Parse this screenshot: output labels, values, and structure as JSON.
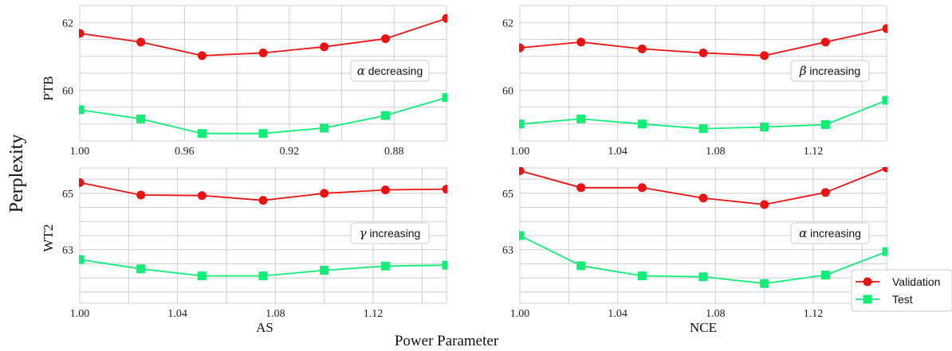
{
  "labels": {
    "ylabel": "Perplexity",
    "xlabel": "Power Parameter",
    "col_labels": [
      "AS",
      "NCE"
    ],
    "row_labels": [
      "PTB",
      "WT2"
    ]
  },
  "legend": {
    "placement": "bottom-right",
    "entries": [
      "Validation",
      "Test"
    ]
  },
  "colors": {
    "validation": "#ee1111",
    "test": "#11ee77"
  },
  "chart_data": [
    {
      "type": "line",
      "panel": "PTB-AS",
      "annotation": {
        "greek": "α",
        "text": " decreasing"
      },
      "xlim": [
        1.0,
        0.86
      ],
      "ylim": [
        58.5,
        62.5
      ],
      "x_reversed": true,
      "xticks": [
        1.0,
        0.96,
        0.92,
        0.88
      ],
      "xtick_labels": [
        "1.00",
        "0.96",
        "0.92",
        "0.88"
      ],
      "yticks": [
        60,
        62
      ],
      "ytick_labels": [
        "60",
        "62"
      ],
      "x": [
        1.0,
        0.9767,
        0.9533,
        0.93,
        0.9067,
        0.8833,
        0.86
      ],
      "series": [
        {
          "name": "Validation",
          "values": [
            61.68,
            61.42,
            61.02,
            61.1,
            61.28,
            61.52,
            62.12
          ]
        },
        {
          "name": "Test",
          "values": [
            59.42,
            59.15,
            58.72,
            58.72,
            58.88,
            59.25,
            59.78
          ]
        }
      ]
    },
    {
      "type": "line",
      "panel": "PTB-NCE",
      "annotation": {
        "greek": "β",
        "text": " increasing"
      },
      "xlim": [
        1.0,
        1.15
      ],
      "ylim": [
        58.5,
        62.5
      ],
      "x_reversed": false,
      "xticks": [
        1.0,
        1.04,
        1.08,
        1.12
      ],
      "xtick_labels": [
        "1.00",
        "1.04",
        "1.08",
        "1.12"
      ],
      "yticks": [
        60,
        62
      ],
      "ytick_labels": [
        "60",
        "62"
      ],
      "x": [
        1.0,
        1.025,
        1.05,
        1.075,
        1.1,
        1.125,
        1.15
      ],
      "series": [
        {
          "name": "Validation",
          "values": [
            61.25,
            61.42,
            61.22,
            61.1,
            61.02,
            61.42,
            61.82
          ]
        },
        {
          "name": "Test",
          "values": [
            59.0,
            59.15,
            59.0,
            58.86,
            58.91,
            58.98,
            59.7
          ]
        }
      ]
    },
    {
      "type": "line",
      "panel": "WT2-AS",
      "annotation": {
        "greek": "γ",
        "text": " increasing"
      },
      "xlim": [
        1.0,
        1.15
      ],
      "ylim": [
        61.1,
        65.9
      ],
      "x_reversed": false,
      "xticks": [
        1.0,
        1.04,
        1.08,
        1.12
      ],
      "xtick_labels": [
        "1.00",
        "1.04",
        "1.08",
        "1.12"
      ],
      "yticks": [
        63,
        65
      ],
      "ytick_labels": [
        "63",
        "65"
      ],
      "x": [
        1.0,
        1.025,
        1.05,
        1.075,
        1.1,
        1.125,
        1.15
      ],
      "series": [
        {
          "name": "Validation",
          "values": [
            65.38,
            64.94,
            64.92,
            64.75,
            65.0,
            65.12,
            65.15
          ]
        },
        {
          "name": "Test",
          "values": [
            62.65,
            62.32,
            62.07,
            62.07,
            62.27,
            62.42,
            62.45
          ]
        }
      ]
    },
    {
      "type": "line",
      "panel": "WT2-NCE",
      "annotation": {
        "greek": "α",
        "text": " increasing"
      },
      "xlim": [
        1.0,
        1.15
      ],
      "ylim": [
        61.1,
        65.9
      ],
      "x_reversed": false,
      "xticks": [
        1.0,
        1.04,
        1.08,
        1.12
      ],
      "xtick_labels": [
        "1.00",
        "1.04",
        "1.08",
        "1.12"
      ],
      "yticks": [
        63,
        65
      ],
      "ytick_labels": [
        "63",
        "65"
      ],
      "x": [
        1.0,
        1.025,
        1.05,
        1.075,
        1.1,
        1.125,
        1.15
      ],
      "series": [
        {
          "name": "Validation",
          "values": [
            65.8,
            65.2,
            65.2,
            64.83,
            64.6,
            65.03,
            65.9
          ]
        },
        {
          "name": "Test",
          "values": [
            63.5,
            62.43,
            62.07,
            62.04,
            61.8,
            62.1,
            62.93
          ]
        }
      ]
    }
  ]
}
